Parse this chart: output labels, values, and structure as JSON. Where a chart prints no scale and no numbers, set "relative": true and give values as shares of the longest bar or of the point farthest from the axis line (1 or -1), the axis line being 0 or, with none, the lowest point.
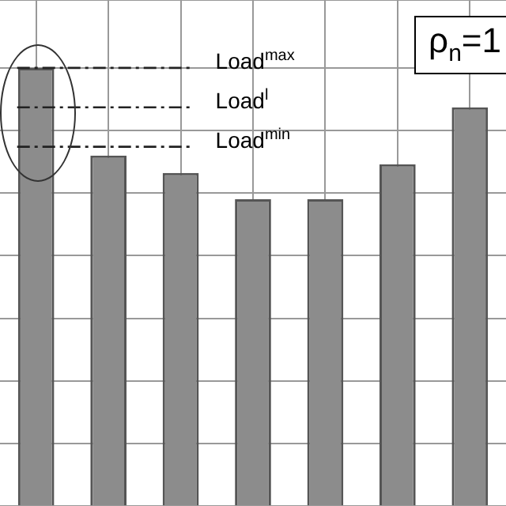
{
  "chart_data": {
    "type": "bar",
    "categories": [
      null,
      null,
      null,
      null,
      null,
      null,
      null
    ],
    "values": [
      1,
      0.8,
      0.76,
      0.7,
      0.7,
      0.78,
      0.91
    ],
    "color": "#8c8c8c",
    "relative": true,
    "grid": true,
    "ref_lines": [
      {
        "axis": "y",
        "value": 1,
        "label": "Load$^{max}$",
        "line_style": "dashed"
      },
      {
        "axis": "y",
        "value": 0.91,
        "label": "Load$^{l}$",
        "line_style": "dashed"
      },
      {
        "axis": "y",
        "value": 0.82,
        "label": "Load$^{min}$",
        "line_style": "dashed"
      }
    ],
    "annotations": [
      "ρ$_{n}$=1"
    ]
  }
}
